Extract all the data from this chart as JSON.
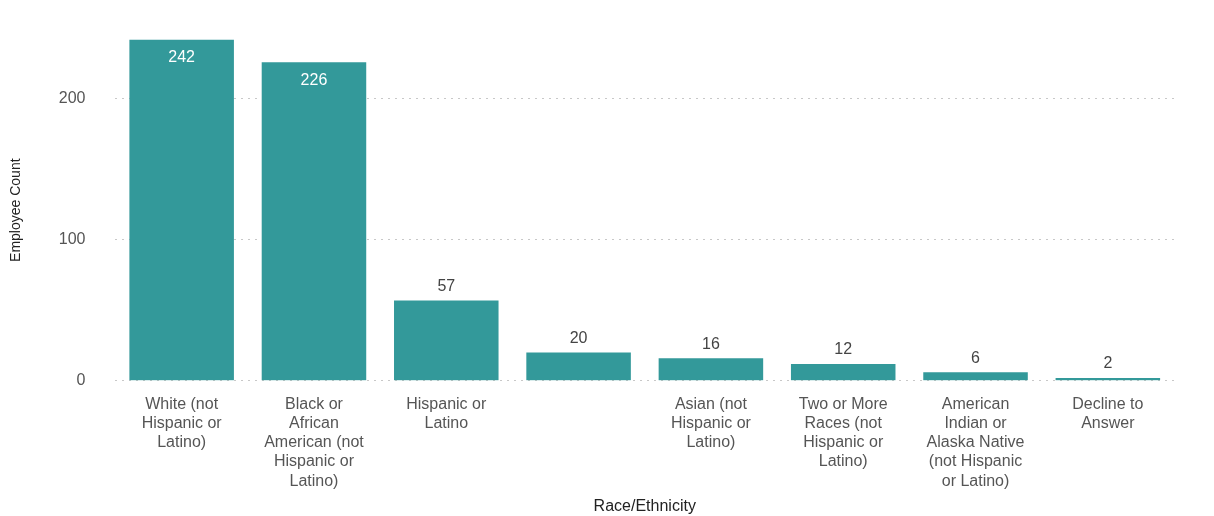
{
  "chart_data": {
    "type": "bar",
    "xlabel": "Race/Ethnicity",
    "ylabel": "Employee Count",
    "categories": [
      "White (not Hispanic or Latino)",
      "Black or African American (not Hispanic or Latino)",
      "Hispanic or Latino",
      null,
      "Asian (not Hispanic or Latino)",
      "Two or More Races (not Hispanic or Latino)",
      "American Indian or Alaska Native (not Hispanic or Latino)",
      "Decline to Answer"
    ],
    "values": [
      242,
      226,
      57,
      20,
      16,
      12,
      6,
      2
    ],
    "color": "#33999a",
    "ylim": [
      0,
      242
    ],
    "yticks": [
      0,
      100,
      200
    ],
    "grid": "y",
    "legend": false,
    "data_labels": true
  }
}
